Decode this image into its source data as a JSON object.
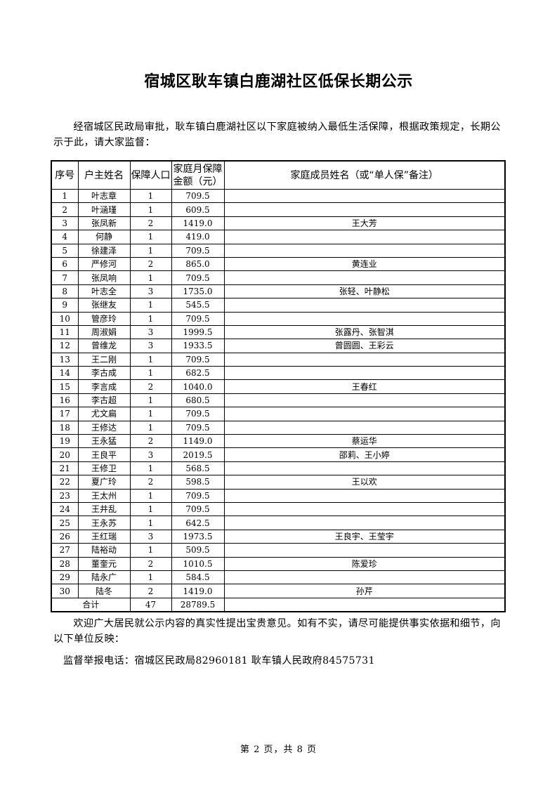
{
  "title": "宿城区耿车镇白鹿湖社区低保长期公示",
  "intro": "经宿城区民政局审批，耿车镇白鹿湖社区以下家庭被纳入最低生活保障，根据政策规定，长期公示于此，请大家监督：",
  "table": {
    "headers": [
      "序号",
      "户主姓名",
      "保障人口",
      "家庭月保障金额（元）",
      "家庭成员姓名（或“单人保”备注）"
    ],
    "rows": [
      [
        "1",
        "叶志章",
        "1",
        "709.5",
        ""
      ],
      [
        "2",
        "叶涵瑾",
        "1",
        "609.5",
        ""
      ],
      [
        "3",
        "张凤新",
        "2",
        "1419.0",
        "王大芳"
      ],
      [
        "4",
        "何静",
        "1",
        "419.0",
        ""
      ],
      [
        "5",
        "徐建泽",
        "1",
        "709.5",
        ""
      ],
      [
        "6",
        "严修河",
        "2",
        "865.0",
        "黄连业"
      ],
      [
        "7",
        "张凤响",
        "1",
        "709.5",
        ""
      ],
      [
        "8",
        "叶志全",
        "3",
        "1735.0",
        "张轻、叶静松"
      ],
      [
        "9",
        "张继友",
        "1",
        "545.5",
        ""
      ],
      [
        "10",
        "管彦玲",
        "1",
        "709.5",
        ""
      ],
      [
        "11",
        "周淑娟",
        "3",
        "1999.5",
        "张露丹、张智淇"
      ],
      [
        "12",
        "曾维龙",
        "3",
        "1933.5",
        "曾圆圆、王彩云"
      ],
      [
        "13",
        "王二刚",
        "1",
        "709.5",
        ""
      ],
      [
        "14",
        "李古成",
        "1",
        "682.5",
        ""
      ],
      [
        "15",
        "李言成",
        "2",
        "1040.0",
        "王春红"
      ],
      [
        "16",
        "李古超",
        "1",
        "680.5",
        ""
      ],
      [
        "17",
        "尤文扁",
        "1",
        "709.5",
        ""
      ],
      [
        "18",
        "王修达",
        "1",
        "709.5",
        ""
      ],
      [
        "19",
        "王永猛",
        "2",
        "1149.0",
        "蔡运华"
      ],
      [
        "20",
        "王良平",
        "3",
        "2019.5",
        "邵莉、王小婷"
      ],
      [
        "21",
        "王修卫",
        "1",
        "568.5",
        ""
      ],
      [
        "22",
        "夏广玲",
        "2",
        "598.5",
        "王以欢"
      ],
      [
        "23",
        "王太州",
        "1",
        "709.5",
        ""
      ],
      [
        "24",
        "王井乱",
        "1",
        "709.5",
        ""
      ],
      [
        "25",
        "王永苏",
        "1",
        "642.5",
        ""
      ],
      [
        "26",
        "王红瑞",
        "3",
        "1973.5",
        "王良宇、王莹宇"
      ],
      [
        "27",
        "陆裕动",
        "1",
        "509.5",
        ""
      ],
      [
        "28",
        "董奎元",
        "2",
        "1010.5",
        "陈爱珍"
      ],
      [
        "29",
        "陆永广",
        "1",
        "584.5",
        ""
      ],
      [
        "30",
        "陆冬",
        "2",
        "1419.0",
        "孙芹"
      ]
    ],
    "total": {
      "label": "合计",
      "people": "47",
      "amount": "28789.5",
      "note": ""
    }
  },
  "feedback": "欢迎广大居民就公示内容的真实性提出宝贵意见。如有不实，请尽可能提供事实依据和细节，向以下单位反映：",
  "phone": "监督举报电话：宿城区民政局82960181 耿车镇人民政府84575731",
  "page_number": "第 2 页，共 8 页"
}
